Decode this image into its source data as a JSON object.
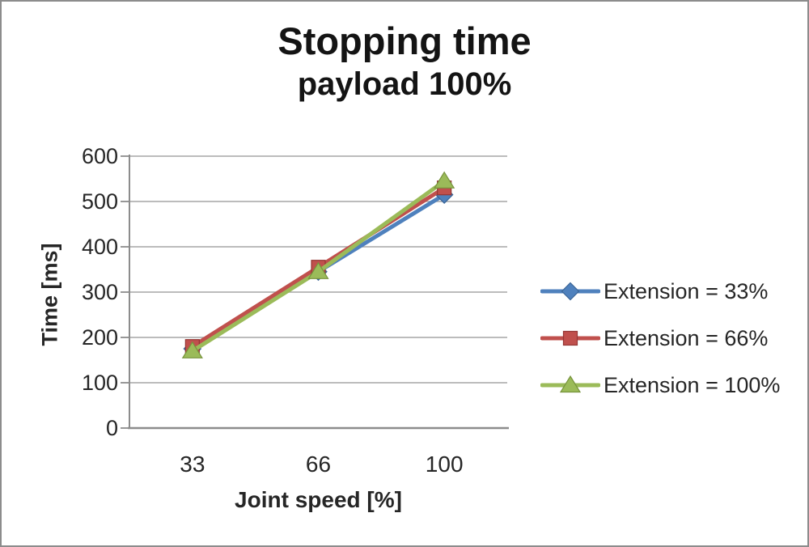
{
  "frame": {
    "background": "#ffffff",
    "border_color": "#8c8c8c"
  },
  "chart_data": {
    "type": "line",
    "title": "Stopping time",
    "subtitle": "payload 100%",
    "xlabel": "Joint speed [%]",
    "ylabel": "Time [ms]",
    "categories": [
      "33",
      "66",
      "100"
    ],
    "yticks": [
      0,
      100,
      200,
      300,
      400,
      500,
      600
    ],
    "ylim": [
      0,
      600
    ],
    "grid": true,
    "legend_position": "right",
    "axis_color": "#8c8c8c",
    "gridline_color": "#a6a6a6",
    "text_color": "#262626",
    "series": [
      {
        "name": "Extension = 33%",
        "marker": "diamond",
        "color": "#4f81bd",
        "edge_color": "#3a6597",
        "values": [
          175,
          345,
          515
        ]
      },
      {
        "name": "Extension = 66%",
        "marker": "square",
        "color": "#c0504d",
        "edge_color": "#943634",
        "values": [
          180,
          355,
          530
        ]
      },
      {
        "name": "Extension = 100%",
        "marker": "triangle",
        "color": "#9bbb59",
        "edge_color": "#77933c",
        "values": [
          170,
          345,
          545
        ]
      }
    ]
  }
}
